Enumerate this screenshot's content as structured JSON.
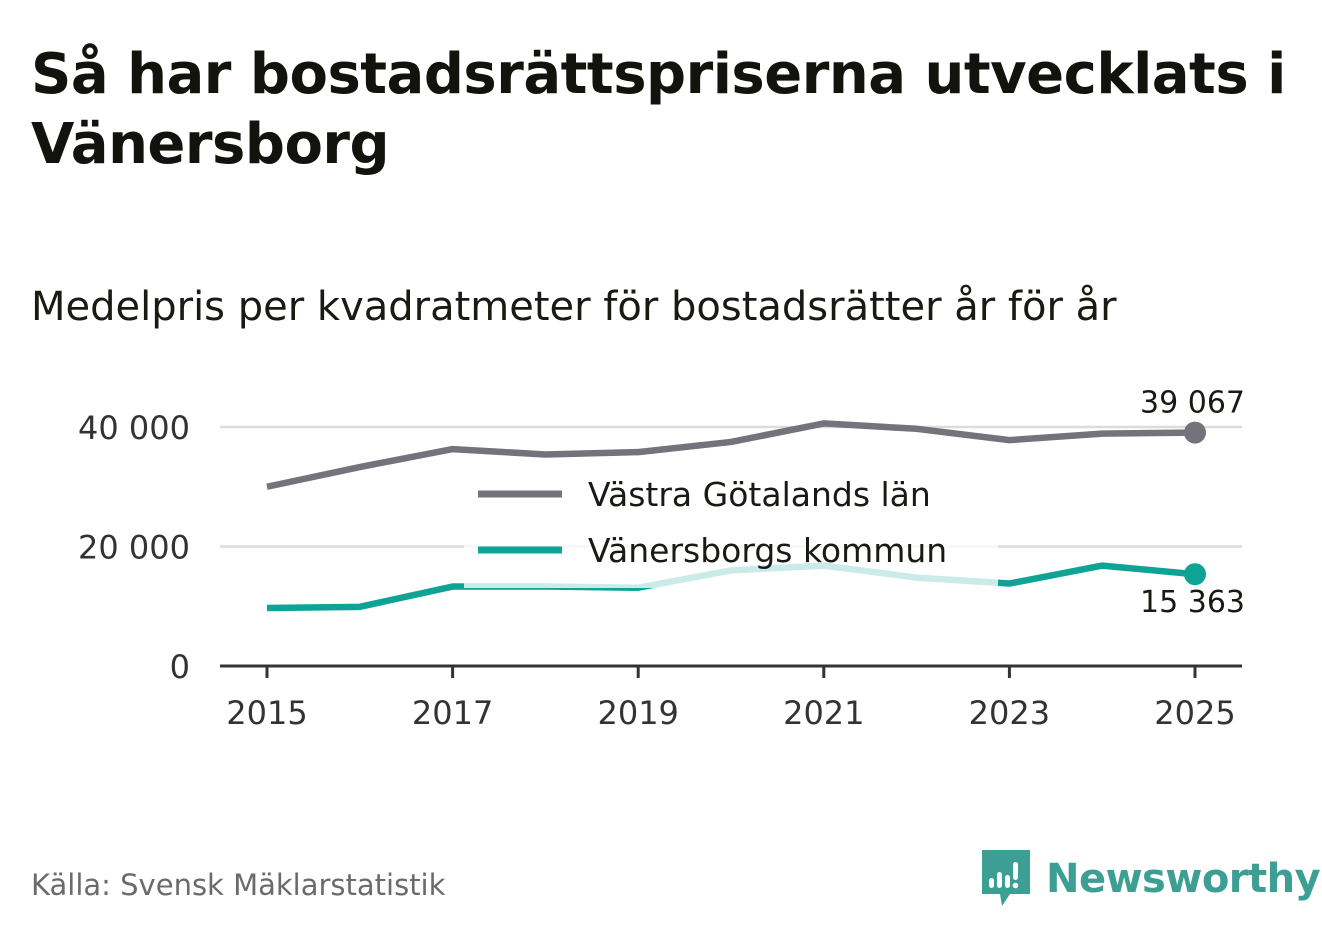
{
  "title": "Så har bostadsrättspriserna utvecklats i Vänersborg",
  "subtitle": "Medelpris per kvadratmeter för bostadsrätter år för år",
  "source": "Källa: Svensk Mäklarstatistik",
  "brand": {
    "name": "Newsworthy",
    "color": "#3d9f93"
  },
  "chart_data": {
    "type": "line",
    "title": "Så har bostadsrättspriserna utvecklats i Vänersborg",
    "subtitle": "Medelpris per kvadratmeter för bostadsrätter år för år",
    "x": [
      2015,
      2016,
      2017,
      2018,
      2019,
      2020,
      2021,
      2022,
      2023,
      2024,
      2025
    ],
    "xticks": [
      2015,
      2017,
      2019,
      2021,
      2023,
      2025
    ],
    "xtick_labels": [
      "2015",
      "2017",
      "2019",
      "2021",
      "2023",
      "2025"
    ],
    "yticks": [
      0,
      20000,
      40000
    ],
    "ytick_labels": [
      "0",
      "20 000",
      "40 000"
    ],
    "ylim": [
      0,
      40000
    ],
    "xlim": [
      2015,
      2025
    ],
    "grid": true,
    "legend_position": "center",
    "series": [
      {
        "name": "Västra Götalands län",
        "color": "#74737b",
        "values": [
          30000,
          33300,
          36300,
          35400,
          35800,
          37500,
          40600,
          39700,
          37800,
          38900,
          39067
        ],
        "end_label": "39 067"
      },
      {
        "name": "Vänersborgs kommun",
        "color": "#0fa396",
        "values": [
          9700,
          9900,
          13300,
          13300,
          13100,
          16000,
          16800,
          14800,
          13800,
          16800,
          15363
        ],
        "end_label": "15 363"
      }
    ]
  }
}
